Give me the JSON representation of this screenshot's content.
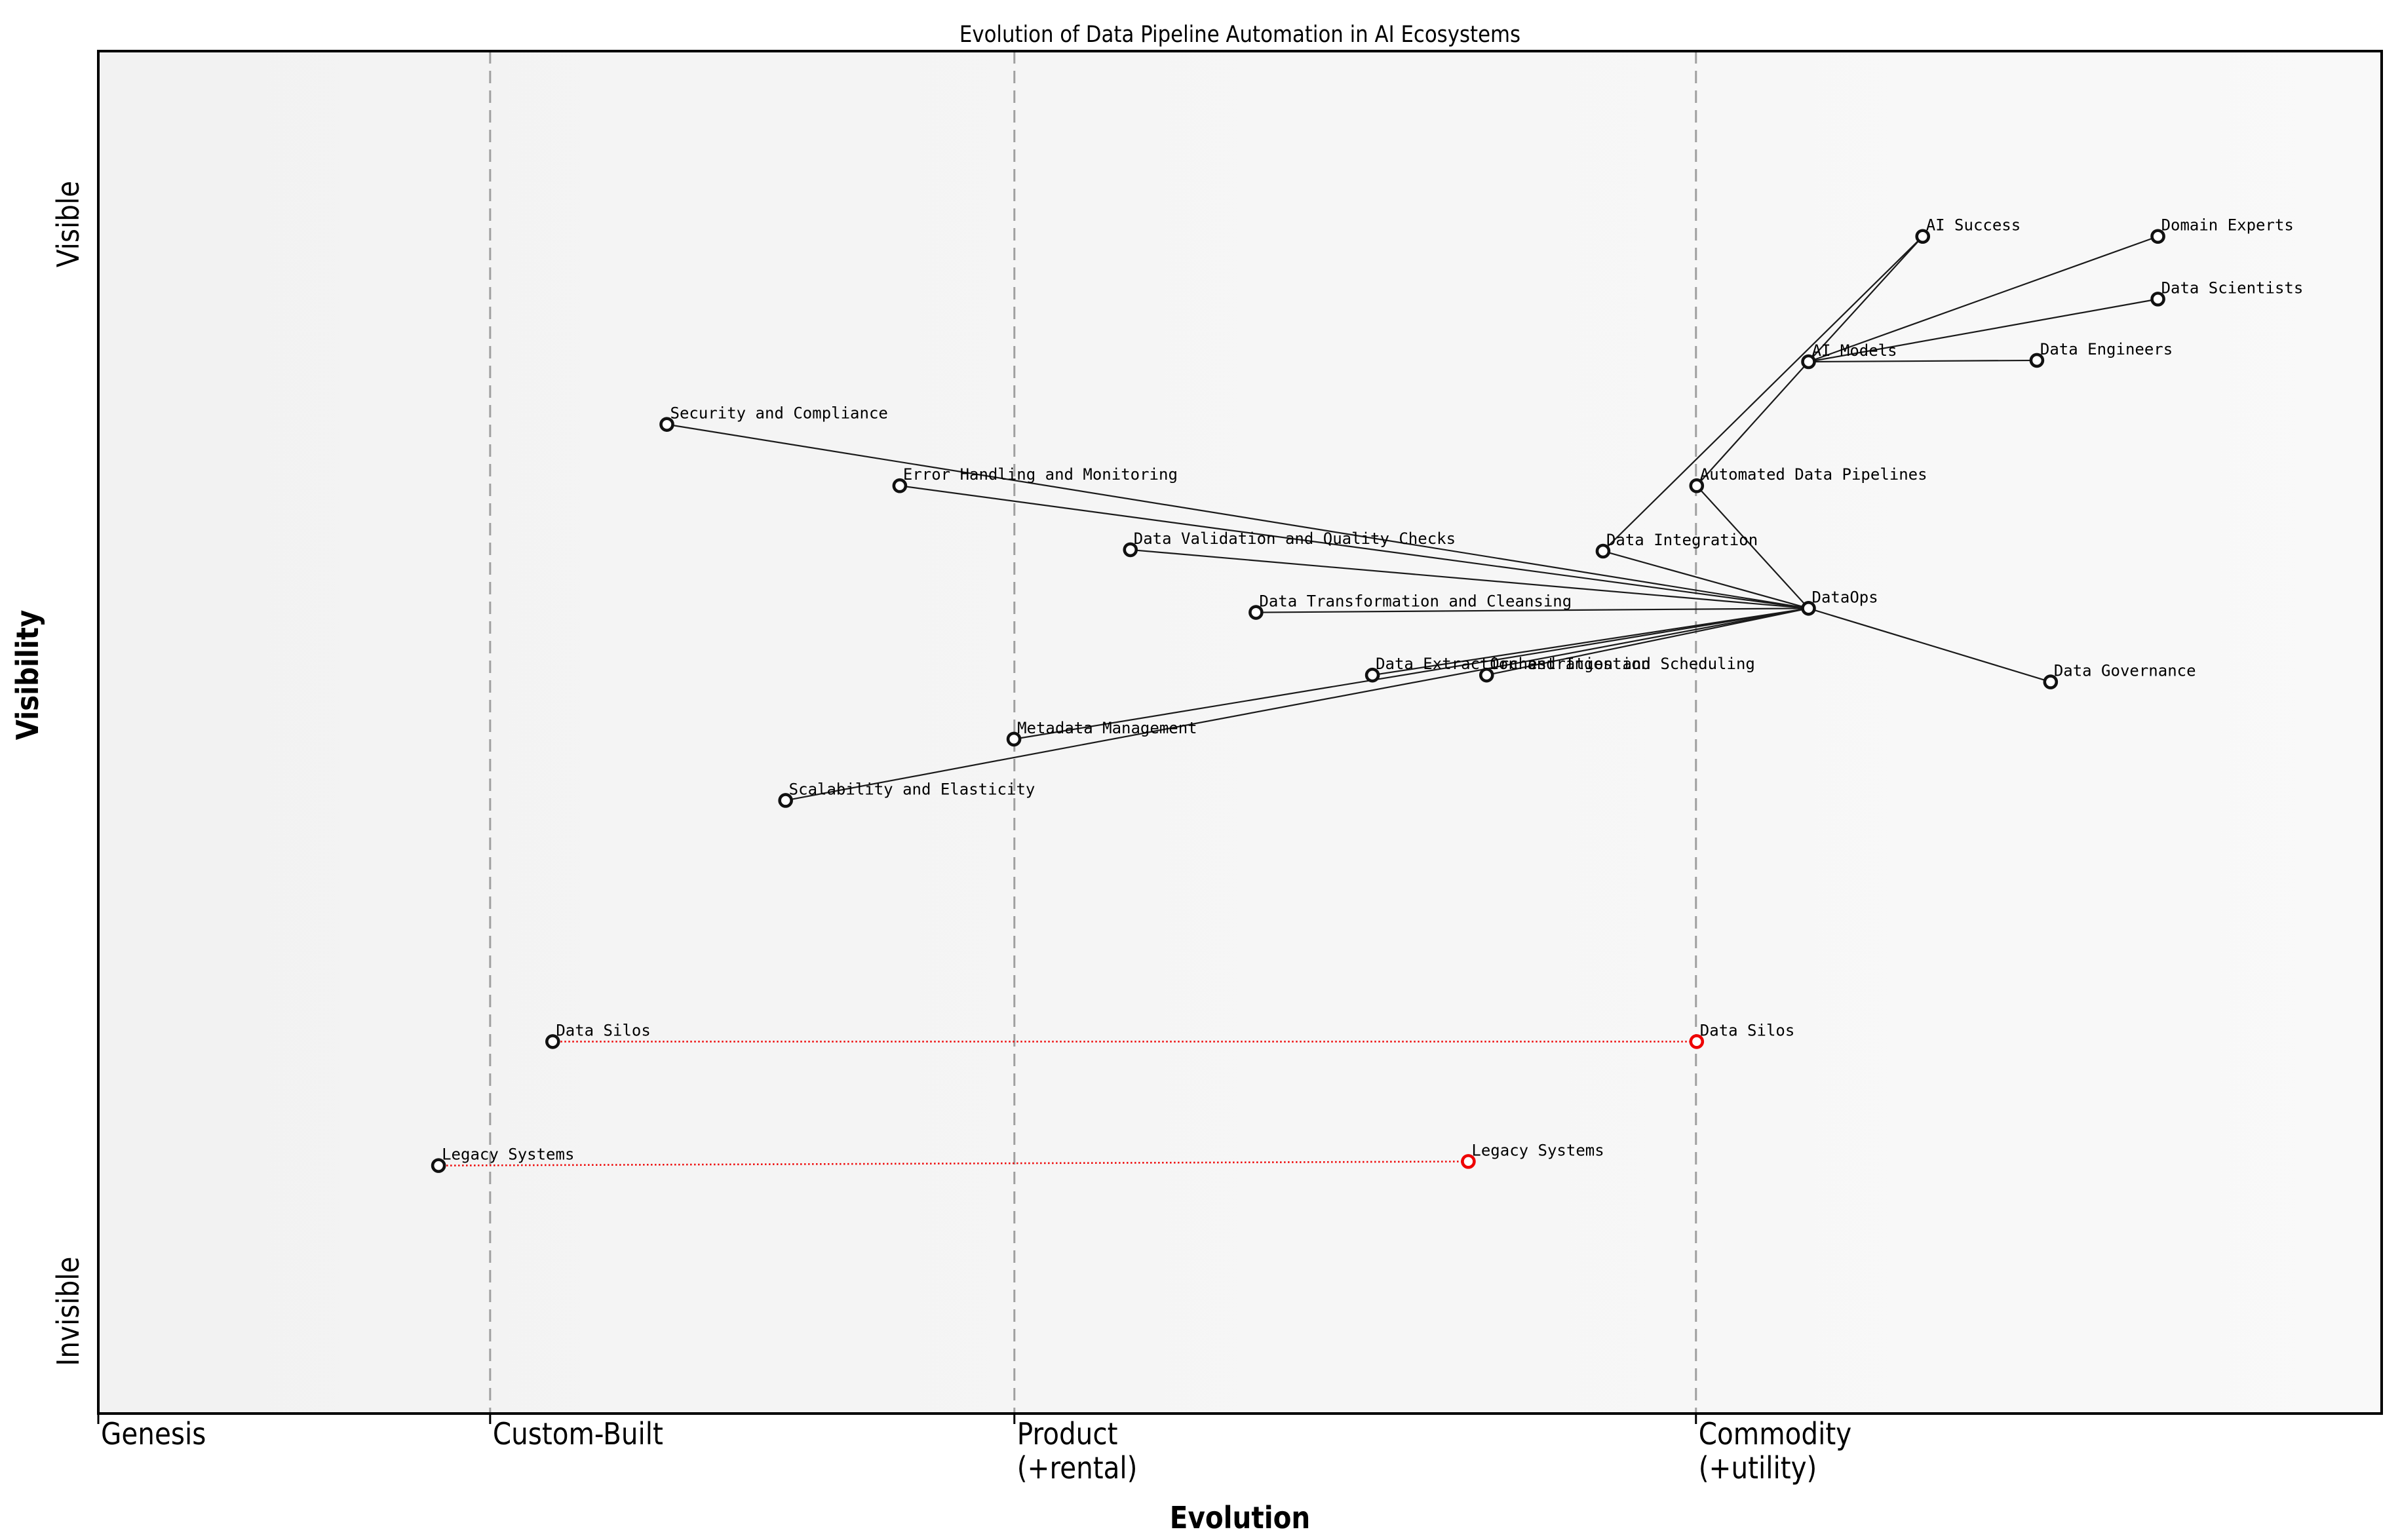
{
  "chart_data": {
    "type": "wardley-map",
    "title": "Evolution of Data Pipeline Automation in AI Ecosystems",
    "xlabel": "Evolution",
    "ylabel": "Visibility",
    "x_stages": [
      {
        "label": "Genesis",
        "sublabel": "",
        "x": 0.0
      },
      {
        "label": "Custom-Built",
        "sublabel": "",
        "x": 0.1716
      },
      {
        "label": "Product",
        "sublabel": "(+rental)",
        "x": 0.4012
      },
      {
        "label": "Commodity",
        "sublabel": "(+utility)",
        "x": 0.6997
      }
    ],
    "y_ticks": [
      {
        "label": "Visible",
        "y": 0.873
      },
      {
        "label": "Invisible",
        "y": 0.075
      }
    ],
    "nodes": [
      {
        "id": "security-compliance",
        "label": "Security and Compliance",
        "x": 0.249,
        "y": 0.726,
        "color": "black"
      },
      {
        "id": "error-handling",
        "label": "Error Handling and Monitoring",
        "x": 0.351,
        "y": 0.681,
        "color": "black"
      },
      {
        "id": "data-validation",
        "label": "Data Validation and Quality Checks",
        "x": 0.452,
        "y": 0.634,
        "color": "black"
      },
      {
        "id": "data-transformation",
        "label": "Data Transformation and Cleansing",
        "x": 0.507,
        "y": 0.588,
        "color": "black"
      },
      {
        "id": "data-extraction",
        "label": "Data Extraction and Ingestion",
        "x": 0.558,
        "y": 0.542,
        "color": "black"
      },
      {
        "id": "orchestration",
        "label": "Orchestration and Scheduling",
        "x": 0.608,
        "y": 0.542,
        "color": "black"
      },
      {
        "id": "metadata",
        "label": "Metadata Management",
        "x": 0.401,
        "y": 0.495,
        "color": "black"
      },
      {
        "id": "scalability",
        "label": "Scalability and Elasticity",
        "x": 0.301,
        "y": 0.45,
        "color": "black"
      },
      {
        "id": "data-integration",
        "label": "Data Integration",
        "x": 0.659,
        "y": 0.633,
        "color": "black"
      },
      {
        "id": "automated-pipelines",
        "label": "Automated Data Pipelines",
        "x": 0.7,
        "y": 0.681,
        "color": "black"
      },
      {
        "id": "dataops",
        "label": "DataOps",
        "x": 0.749,
        "y": 0.591,
        "color": "black"
      },
      {
        "id": "data-governance",
        "label": "Data Governance",
        "x": 0.855,
        "y": 0.537,
        "color": "black"
      },
      {
        "id": "ai-models",
        "label": "AI Models",
        "x": 0.749,
        "y": 0.772,
        "color": "black"
      },
      {
        "id": "ai-success",
        "label": "AI Success",
        "x": 0.799,
        "y": 0.864,
        "color": "black"
      },
      {
        "id": "domain-experts",
        "label": "Domain Experts",
        "x": 0.902,
        "y": 0.864,
        "color": "black"
      },
      {
        "id": "data-scientists",
        "label": "Data Scientists",
        "x": 0.902,
        "y": 0.818,
        "color": "black"
      },
      {
        "id": "data-engineers",
        "label": "Data Engineers",
        "x": 0.849,
        "y": 0.773,
        "color": "black"
      },
      {
        "id": "data-silos-past",
        "label": "Data Silos",
        "x": 0.199,
        "y": 0.273,
        "color": "black"
      },
      {
        "id": "data-silos-now",
        "label": "Data Silos",
        "x": 0.7,
        "y": 0.273,
        "color": "red"
      },
      {
        "id": "legacy-systems-past",
        "label": "Legacy Systems",
        "x": 0.149,
        "y": 0.182,
        "color": "black"
      },
      {
        "id": "legacy-systems-now",
        "label": "Legacy Systems",
        "x": 0.6,
        "y": 0.185,
        "color": "red"
      }
    ],
    "edges": [
      [
        "dataops",
        "security-compliance"
      ],
      [
        "dataops",
        "error-handling"
      ],
      [
        "dataops",
        "data-validation"
      ],
      [
        "dataops",
        "data-transformation"
      ],
      [
        "dataops",
        "data-extraction"
      ],
      [
        "dataops",
        "orchestration"
      ],
      [
        "dataops",
        "metadata"
      ],
      [
        "dataops",
        "scalability"
      ],
      [
        "dataops",
        "data-integration"
      ],
      [
        "dataops",
        "automated-pipelines"
      ],
      [
        "dataops",
        "data-governance"
      ],
      [
        "automated-pipelines",
        "ai-models"
      ],
      [
        "data-integration",
        "ai-success"
      ],
      [
        "ai-models",
        "ai-success"
      ],
      [
        "ai-models",
        "domain-experts"
      ],
      [
        "ai-models",
        "data-scientists"
      ],
      [
        "ai-models",
        "data-engineers"
      ]
    ],
    "evolution_links": [
      [
        "data-silos-past",
        "data-silos-now"
      ],
      [
        "legacy-systems-past",
        "legacy-systems-now"
      ]
    ],
    "colors": {
      "node_stroke": "#111111",
      "red": "#ee0000",
      "edge": "#1a1a1a",
      "boundary": "#a0a0a0",
      "bg_left": "#f2f2f2",
      "bg_right": "#f9f9f9"
    }
  }
}
